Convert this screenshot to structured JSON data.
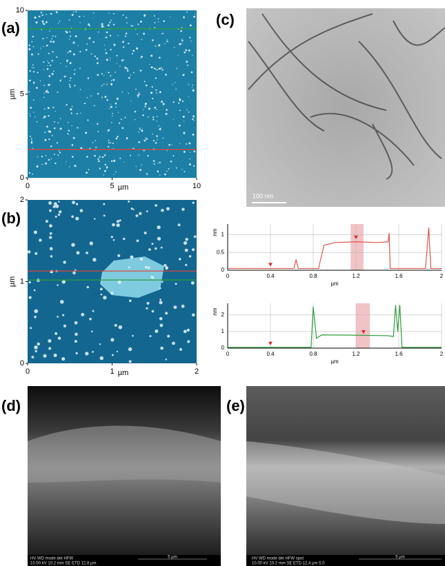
{
  "panels": {
    "a": {
      "label": "(a)",
      "xticks": [
        0,
        5,
        10
      ],
      "yticks": [
        0,
        5,
        10
      ],
      "xlim": [
        0,
        10
      ],
      "ylim": [
        0,
        10
      ],
      "xlabel": "µm",
      "ylabel": "µm",
      "scan_lines": [
        {
          "color": "#2e9e3a",
          "y": 8.9
        },
        {
          "color": "#d9473a",
          "y": 1.7
        }
      ]
    },
    "b": {
      "label": "(b)",
      "xticks": [
        0,
        1,
        2
      ],
      "yticks": [
        0,
        1,
        2
      ],
      "xlim": [
        0,
        2
      ],
      "ylim": [
        0,
        2
      ],
      "xlabel": "µm",
      "ylabel": "µm",
      "scan_lines": [
        {
          "color": "#d9473a",
          "y": 1.13
        },
        {
          "color": "#2e9e3a",
          "y": 1.02
        }
      ]
    },
    "c": {
      "label": "(c)",
      "scale_bar": "100 nm"
    },
    "d": {
      "label": "(d)",
      "info_head": "HV      WD     mode  det   HFW",
      "info_values": "10.00 kV  10.2 mm   SE   ETD  12.8 µm",
      "scale_bar": "5 µm"
    },
    "e": {
      "label": "(e)",
      "info_head": "HV     WD    mode  det  HFW   spot",
      "info_values": "10.00 kV 10.2 mm  SE  ETD 12.4 µm  5.0",
      "scale_bar": "5 µm"
    }
  },
  "chart_data": [
    {
      "type": "line",
      "color": "#e0564a",
      "xlabel": "µm",
      "ylabel": "nm",
      "xlim": [
        0,
        2
      ],
      "ylim": [
        0,
        1.3
      ],
      "xticks": [
        0,
        0.4,
        0.8,
        1.2,
        1.6,
        2
      ],
      "yticks": [
        0,
        0.5,
        1
      ],
      "grid": true,
      "highlight": [
        1.15,
        1.27
      ],
      "markers": [
        {
          "x": 0.4,
          "y": 0.05
        },
        {
          "x": 1.2,
          "y": 0.82
        }
      ],
      "x": [
        0,
        0.2,
        0.4,
        0.62,
        0.64,
        0.66,
        0.85,
        0.9,
        1.0,
        1.2,
        1.4,
        1.5,
        1.51,
        1.52,
        1.85,
        1.88,
        1.9,
        2.0
      ],
      "values": [
        0.05,
        0.05,
        0.05,
        0.05,
        0.3,
        0.05,
        0.05,
        0.7,
        0.78,
        0.8,
        0.78,
        0.8,
        1.05,
        0.05,
        0.05,
        1.2,
        0.05,
        0.05
      ]
    },
    {
      "type": "line",
      "color": "#2e9e3a",
      "xlabel": "µm",
      "ylabel": "nm",
      "xlim": [
        0,
        2
      ],
      "ylim": [
        0,
        2.7
      ],
      "xticks": [
        0,
        0.4,
        0.8,
        1.2,
        1.6,
        2
      ],
      "yticks": [
        0,
        1,
        2
      ],
      "grid": true,
      "highlight": [
        1.2,
        1.33
      ],
      "markers": [
        {
          "x": 0.4,
          "y": 0.05
        },
        {
          "x": 1.27,
          "y": 0.75
        }
      ],
      "x": [
        0,
        0.4,
        0.78,
        0.8,
        0.83,
        0.88,
        1.2,
        1.5,
        1.55,
        1.57,
        1.59,
        1.61,
        1.63,
        2.0
      ],
      "values": [
        0.05,
        0.05,
        0.05,
        2.5,
        0.6,
        0.8,
        0.78,
        0.75,
        0.7,
        2.6,
        1.0,
        2.6,
        0.05,
        0.05
      ]
    }
  ]
}
